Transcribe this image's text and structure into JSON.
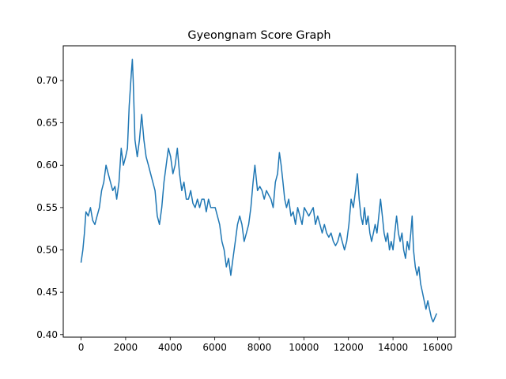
{
  "chart_data": {
    "type": "line",
    "title": "Gyeongnam Score Graph",
    "xlabel": "",
    "ylabel": "",
    "xlim": [
      -800,
      16800
    ],
    "ylim": [
      0.397,
      0.741
    ],
    "x_ticks": [
      0,
      2000,
      4000,
      6000,
      8000,
      10000,
      12000,
      14000,
      16000
    ],
    "y_ticks": [
      0.4,
      0.45,
      0.5,
      0.55,
      0.6,
      0.65,
      0.7
    ],
    "x_tick_labels": [
      "0",
      "2000",
      "4000",
      "6000",
      "8000",
      "10000",
      "12000",
      "14000",
      "16000"
    ],
    "y_tick_labels": [
      "0.40",
      "0.45",
      "0.50",
      "0.55",
      "0.60",
      "0.65",
      "0.70"
    ],
    "grid": false,
    "legend": "none",
    "line_color": "#1f77b4",
    "series": [
      {
        "points": [
          [
            0,
            0.485
          ],
          [
            80,
            0.5
          ],
          [
            150,
            0.52
          ],
          [
            220,
            0.545
          ],
          [
            320,
            0.54
          ],
          [
            420,
            0.55
          ],
          [
            520,
            0.535
          ],
          [
            620,
            0.53
          ],
          [
            720,
            0.54
          ],
          [
            820,
            0.55
          ],
          [
            920,
            0.57
          ],
          [
            1020,
            0.58
          ],
          [
            1120,
            0.6
          ],
          [
            1220,
            0.59
          ],
          [
            1320,
            0.58
          ],
          [
            1420,
            0.57
          ],
          [
            1520,
            0.575
          ],
          [
            1600,
            0.56
          ],
          [
            1700,
            0.58
          ],
          [
            1800,
            0.62
          ],
          [
            1900,
            0.6
          ],
          [
            2000,
            0.61
          ],
          [
            2080,
            0.62
          ],
          [
            2160,
            0.67
          ],
          [
            2260,
            0.71
          ],
          [
            2300,
            0.725
          ],
          [
            2340,
            0.7
          ],
          [
            2420,
            0.63
          ],
          [
            2520,
            0.61
          ],
          [
            2620,
            0.63
          ],
          [
            2720,
            0.66
          ],
          [
            2820,
            0.63
          ],
          [
            2920,
            0.61
          ],
          [
            3020,
            0.6
          ],
          [
            3120,
            0.59
          ],
          [
            3220,
            0.58
          ],
          [
            3320,
            0.57
          ],
          [
            3420,
            0.54
          ],
          [
            3520,
            0.53
          ],
          [
            3620,
            0.55
          ],
          [
            3720,
            0.58
          ],
          [
            3820,
            0.6
          ],
          [
            3920,
            0.62
          ],
          [
            4020,
            0.61
          ],
          [
            4120,
            0.59
          ],
          [
            4220,
            0.6
          ],
          [
            4320,
            0.62
          ],
          [
            4420,
            0.59
          ],
          [
            4520,
            0.57
          ],
          [
            4620,
            0.58
          ],
          [
            4720,
            0.56
          ],
          [
            4820,
            0.56
          ],
          [
            4920,
            0.57
          ],
          [
            5020,
            0.555
          ],
          [
            5120,
            0.55
          ],
          [
            5220,
            0.56
          ],
          [
            5320,
            0.55
          ],
          [
            5420,
            0.56
          ],
          [
            5520,
            0.56
          ],
          [
            5620,
            0.545
          ],
          [
            5720,
            0.56
          ],
          [
            5820,
            0.55
          ],
          [
            5920,
            0.55
          ],
          [
            6020,
            0.55
          ],
          [
            6120,
            0.54
          ],
          [
            6220,
            0.53
          ],
          [
            6320,
            0.51
          ],
          [
            6420,
            0.5
          ],
          [
            6520,
            0.48
          ],
          [
            6620,
            0.49
          ],
          [
            6720,
            0.47
          ],
          [
            6820,
            0.49
          ],
          [
            6920,
            0.51
          ],
          [
            7020,
            0.53
          ],
          [
            7120,
            0.54
          ],
          [
            7220,
            0.53
          ],
          [
            7320,
            0.51
          ],
          [
            7420,
            0.52
          ],
          [
            7520,
            0.53
          ],
          [
            7620,
            0.55
          ],
          [
            7720,
            0.58
          ],
          [
            7800,
            0.6
          ],
          [
            7920,
            0.57
          ],
          [
            8020,
            0.575
          ],
          [
            8120,
            0.57
          ],
          [
            8220,
            0.56
          ],
          [
            8320,
            0.57
          ],
          [
            8420,
            0.565
          ],
          [
            8520,
            0.56
          ],
          [
            8620,
            0.55
          ],
          [
            8720,
            0.58
          ],
          [
            8820,
            0.59
          ],
          [
            8900,
            0.615
          ],
          [
            8980,
            0.6
          ],
          [
            9060,
            0.58
          ],
          [
            9140,
            0.56
          ],
          [
            9220,
            0.55
          ],
          [
            9320,
            0.56
          ],
          [
            9420,
            0.54
          ],
          [
            9520,
            0.545
          ],
          [
            9620,
            0.53
          ],
          [
            9720,
            0.55
          ],
          [
            9820,
            0.54
          ],
          [
            9920,
            0.53
          ],
          [
            10020,
            0.55
          ],
          [
            10120,
            0.545
          ],
          [
            10220,
            0.54
          ],
          [
            10320,
            0.545
          ],
          [
            10420,
            0.55
          ],
          [
            10520,
            0.53
          ],
          [
            10620,
            0.54
          ],
          [
            10720,
            0.53
          ],
          [
            10820,
            0.52
          ],
          [
            10920,
            0.53
          ],
          [
            11020,
            0.52
          ],
          [
            11120,
            0.515
          ],
          [
            11220,
            0.52
          ],
          [
            11320,
            0.51
          ],
          [
            11420,
            0.505
          ],
          [
            11520,
            0.51
          ],
          [
            11620,
            0.52
          ],
          [
            11720,
            0.51
          ],
          [
            11820,
            0.5
          ],
          [
            11920,
            0.51
          ],
          [
            12020,
            0.53
          ],
          [
            12120,
            0.56
          ],
          [
            12220,
            0.55
          ],
          [
            12320,
            0.57
          ],
          [
            12400,
            0.59
          ],
          [
            12480,
            0.56
          ],
          [
            12560,
            0.54
          ],
          [
            12640,
            0.53
          ],
          [
            12720,
            0.55
          ],
          [
            12800,
            0.53
          ],
          [
            12880,
            0.54
          ],
          [
            12960,
            0.52
          ],
          [
            13040,
            0.51
          ],
          [
            13120,
            0.52
          ],
          [
            13200,
            0.53
          ],
          [
            13280,
            0.52
          ],
          [
            13360,
            0.54
          ],
          [
            13440,
            0.56
          ],
          [
            13520,
            0.54
          ],
          [
            13600,
            0.52
          ],
          [
            13680,
            0.51
          ],
          [
            13760,
            0.52
          ],
          [
            13840,
            0.5
          ],
          [
            13920,
            0.51
          ],
          [
            14000,
            0.5
          ],
          [
            14080,
            0.52
          ],
          [
            14160,
            0.54
          ],
          [
            14240,
            0.52
          ],
          [
            14320,
            0.51
          ],
          [
            14400,
            0.52
          ],
          [
            14480,
            0.5
          ],
          [
            14560,
            0.49
          ],
          [
            14640,
            0.51
          ],
          [
            14720,
            0.5
          ],
          [
            14800,
            0.52
          ],
          [
            14860,
            0.54
          ],
          [
            14920,
            0.5
          ],
          [
            15000,
            0.48
          ],
          [
            15080,
            0.47
          ],
          [
            15160,
            0.48
          ],
          [
            15240,
            0.46
          ],
          [
            15320,
            0.45
          ],
          [
            15400,
            0.44
          ],
          [
            15480,
            0.43
          ],
          [
            15560,
            0.44
          ],
          [
            15640,
            0.43
          ],
          [
            15720,
            0.42
          ],
          [
            15800,
            0.415
          ],
          [
            15880,
            0.42
          ],
          [
            15960,
            0.425
          ]
        ]
      }
    ]
  }
}
